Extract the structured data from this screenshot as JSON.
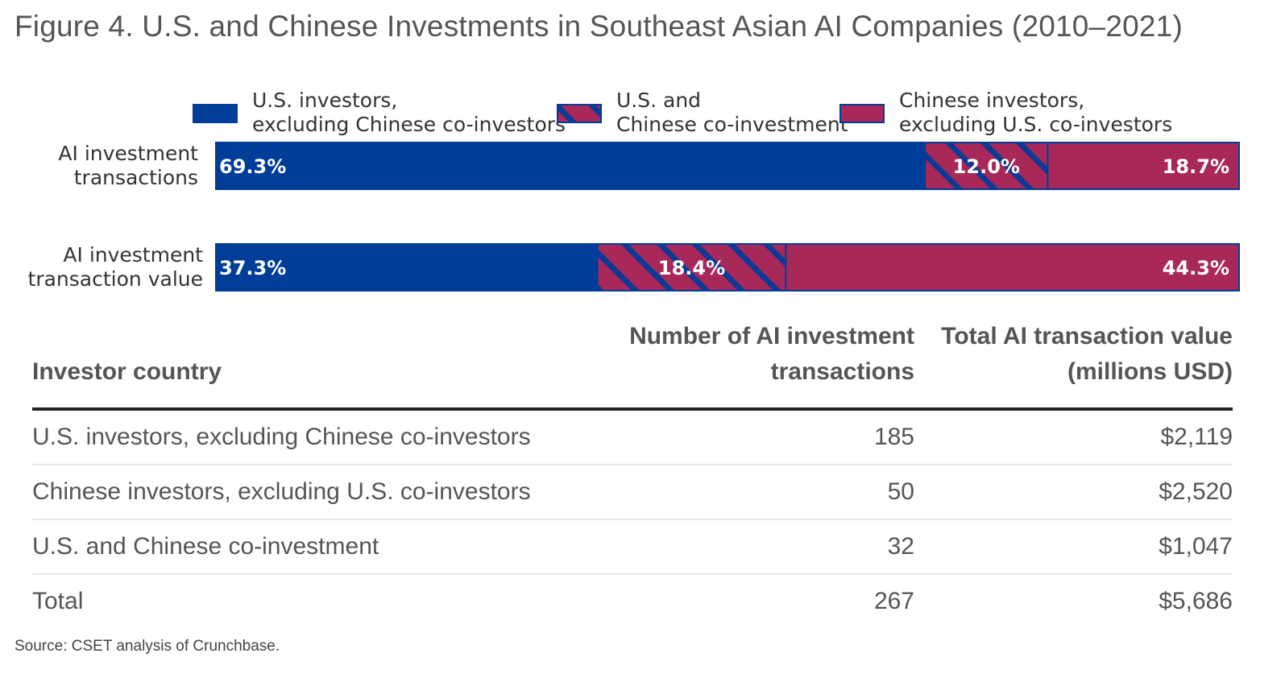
{
  "title": "Figure 4. U.S. and Chinese Investments in Southeast Asian AI Companies (2010–2021)",
  "chart_data": {
    "type": "bar",
    "orientation": "horizontal",
    "stacked": true,
    "normalized": true,
    "unit": "%",
    "categories": [
      "AI investment transactions",
      "AI investment transaction value"
    ],
    "series": [
      {
        "name": "U.S. investors, excluding Chinese co-investors",
        "values": [
          69.3,
          37.3
        ],
        "labels": [
          "69.3%",
          "37.3%"
        ],
        "color": "#003d99",
        "pattern": "solid"
      },
      {
        "name": "U.S. and Chinese co-investment",
        "values": [
          12.0,
          18.4
        ],
        "labels": [
          "12.0%",
          "18.4%"
        ],
        "color": "#a8285a",
        "pattern": "hatched"
      },
      {
        "name": "Chinese investors, excluding U.S. co-investors",
        "values": [
          18.7,
          44.3
        ],
        "labels": [
          "18.7%",
          "44.3%"
        ],
        "color": "#a8285a",
        "pattern": "solid"
      }
    ],
    "legend_position": "top",
    "grid": false
  },
  "colors": {
    "us": "#003d99",
    "cn": "#a8285a",
    "hatch": "#0d3a94"
  },
  "table": {
    "headers": [
      "Investor country",
      "Number of AI investment transactions",
      "Total AI transaction value (millions USD)"
    ],
    "rows": [
      {
        "country": "U.S. investors, excluding Chinese co-investors",
        "count": "185",
        "value": "$2,119"
      },
      {
        "country": "Chinese investors, excluding U.S. co-investors",
        "count": "50",
        "value": "$2,520"
      },
      {
        "country": "U.S. and Chinese co-investment",
        "count": "32",
        "value": "$1,047"
      },
      {
        "country": "Total",
        "count": "267",
        "value": "$5,686"
      }
    ]
  },
  "source": "Source: CSET analysis of Crunchbase."
}
